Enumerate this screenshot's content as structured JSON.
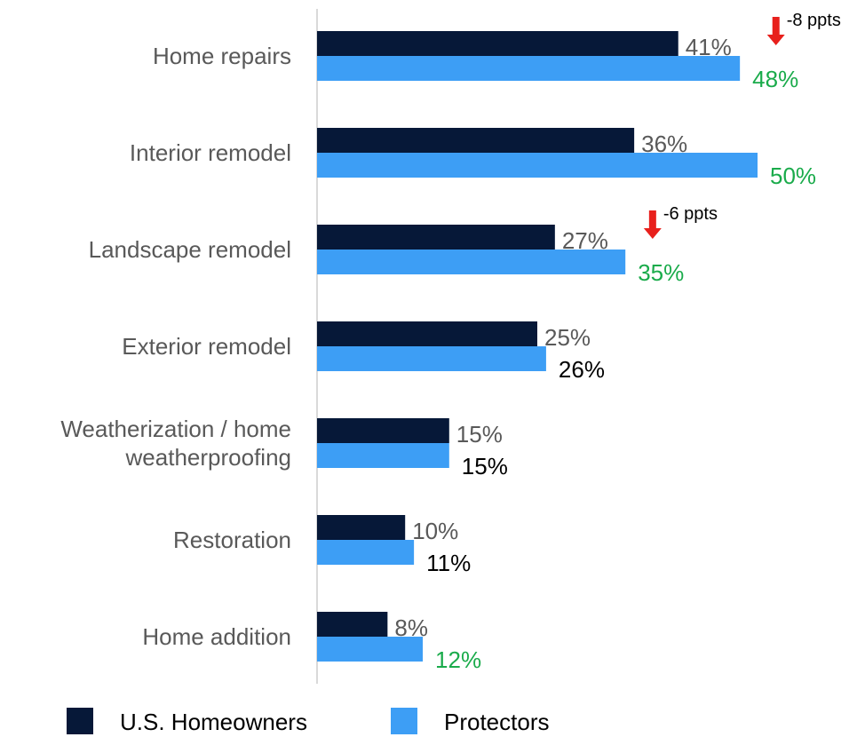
{
  "chart_data": {
    "type": "hbar",
    "categories": [
      "Home repairs",
      "Interior remodel",
      "Landscape remodel",
      "Exterior remodel",
      "Weatherization / home weatherproofing",
      "Restoration",
      "Home addition"
    ],
    "series": [
      {
        "name": "U.S. Homeowners",
        "color": "#061838",
        "values": [
          41,
          36,
          27,
          25,
          15,
          10,
          8
        ],
        "value_labels": [
          "41%",
          "36%",
          "27%",
          "25%",
          "15%",
          "10%",
          "8%"
        ],
        "label_colors": [
          "#595959",
          "#595959",
          "#595959",
          "#595959",
          "#595959",
          "#595959",
          "#595959"
        ]
      },
      {
        "name": "Protectors",
        "color": "#3d9ef5",
        "values": [
          48,
          50,
          35,
          26,
          15,
          11,
          12
        ],
        "value_labels": [
          "48%",
          "50%",
          "35%",
          "26%",
          "15%",
          "11%",
          "12%"
        ],
        "label_colors": [
          "#1aab4b",
          "#1aab4b",
          "#1aab4b",
          "#000000",
          "#000000",
          "#000000",
          "#1aab4b"
        ]
      }
    ],
    "xlim": [
      0,
      50
    ],
    "annotations": [
      {
        "text": "-8 ppts",
        "category": "Home repairs"
      },
      {
        "text": "-6 ppts",
        "category": "Landscape remodel"
      }
    ],
    "annotation_color": "#e8201c"
  }
}
